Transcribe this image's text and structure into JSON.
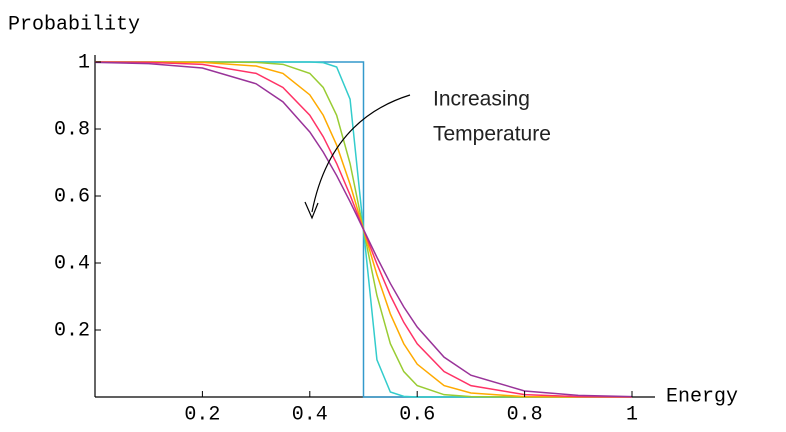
{
  "chart_data": {
    "type": "line",
    "ylabel": "Probability",
    "xlabel": "Energy",
    "annotation": [
      "Increasing",
      "Temperature"
    ],
    "xlim": [
      0,
      1
    ],
    "ylim": [
      0,
      1
    ],
    "xticks": [
      0.2,
      0.4,
      0.6,
      0.8,
      1
    ],
    "yticks": [
      0.2,
      0.4,
      0.6,
      0.8,
      1
    ],
    "x": [
      0,
      0.1,
      0.2,
      0.3,
      0.35,
      0.4,
      0.425,
      0.45,
      0.475,
      0.5,
      0.525,
      0.55,
      0.575,
      0.6,
      0.65,
      0.7,
      0.8,
      0.9,
      1
    ],
    "series": [
      {
        "color": "#3399cc",
        "x": [
          0,
          0.5,
          0.5,
          1
        ],
        "values": [
          1,
          1,
          0,
          0
        ]
      },
      {
        "color": "#33cccc",
        "values": [
          1,
          1,
          1,
          1,
          1,
          1,
          0.998,
          0.985,
          0.889,
          0.5,
          0.111,
          0.015,
          0.002,
          0,
          0,
          0,
          0,
          0,
          0
        ]
      },
      {
        "color": "#99cc33",
        "values": [
          1,
          1,
          1,
          0.999,
          0.993,
          0.966,
          0.924,
          0.841,
          0.697,
          0.5,
          0.303,
          0.159,
          0.076,
          0.034,
          0.007,
          0.001,
          0,
          0,
          0
        ]
      },
      {
        "color": "#ffaa00",
        "values": [
          1,
          1,
          0.999,
          0.988,
          0.966,
          0.902,
          0.841,
          0.752,
          0.635,
          0.5,
          0.365,
          0.248,
          0.159,
          0.098,
          0.034,
          0.012,
          0.001,
          0,
          0
        ]
      },
      {
        "color": "#ff3366",
        "values": [
          1,
          0.999,
          0.993,
          0.966,
          0.924,
          0.841,
          0.777,
          0.697,
          0.603,
          0.5,
          0.397,
          0.303,
          0.223,
          0.159,
          0.076,
          0.034,
          0.007,
          0.001,
          0
        ]
      },
      {
        "color": "#993399",
        "values": [
          0.999,
          0.995,
          0.982,
          0.935,
          0.881,
          0.791,
          0.731,
          0.661,
          0.583,
          0.5,
          0.417,
          0.339,
          0.269,
          0.209,
          0.119,
          0.065,
          0.018,
          0.005,
          0.001
        ]
      }
    ]
  }
}
